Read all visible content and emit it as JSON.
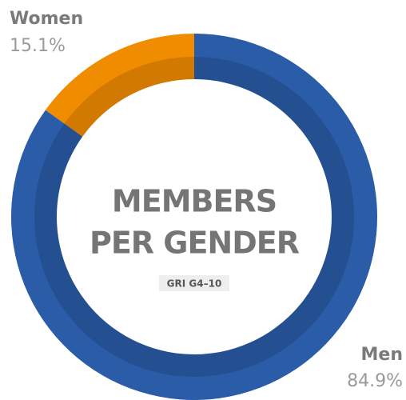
{
  "chart_data": {
    "type": "donut",
    "title": [
      "MEMBERS",
      "PER GENDER"
    ],
    "subtitle": "GRI G4–10",
    "categories": [
      "Women",
      "Men"
    ],
    "values": [
      15.1,
      84.9
    ],
    "value_labels": [
      "15.1%",
      "84.9%"
    ],
    "colors": [
      "#f08c00",
      "#2a5ca8"
    ]
  }
}
